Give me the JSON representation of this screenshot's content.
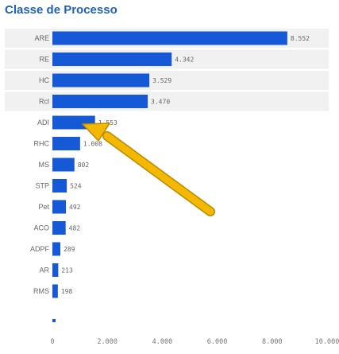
{
  "colors": {
    "bar": "#1659d6",
    "title": "#1f5fbf",
    "arrow": "#f5b800",
    "arrow_edge": "#b88a00",
    "rowband": "#f1f1f1"
  },
  "chart_data": {
    "type": "bar",
    "orientation": "horizontal",
    "title": "Classe de Processo",
    "xlabel": "",
    "ylabel": "",
    "categories": [
      "ARE",
      "RE",
      "HC",
      "Rcl",
      "ADI",
      "RHC",
      "MS",
      "STP",
      "Pet",
      "ACO",
      "ADPF",
      "AR",
      "RMS"
    ],
    "values": [
      8552,
      4342,
      3529,
      3470,
      1553,
      1008,
      802,
      524,
      492,
      482,
      289,
      213,
      198
    ],
    "value_labels": [
      "8.552",
      "4.342",
      "3.529",
      "3.470",
      "1.553",
      "1.008",
      "802",
      "524",
      "492",
      "482",
      "289",
      "213",
      "198"
    ],
    "xlim": [
      0,
      10000
    ],
    "xticks": [
      0,
      2000,
      4000,
      6000,
      8000,
      10000
    ],
    "xtick_labels": [
      "0",
      "2.000",
      "4.000",
      "6.000",
      "8.000",
      "10.000"
    ],
    "grid": false,
    "annotation": {
      "type": "arrow",
      "points_to": "ADI"
    }
  }
}
